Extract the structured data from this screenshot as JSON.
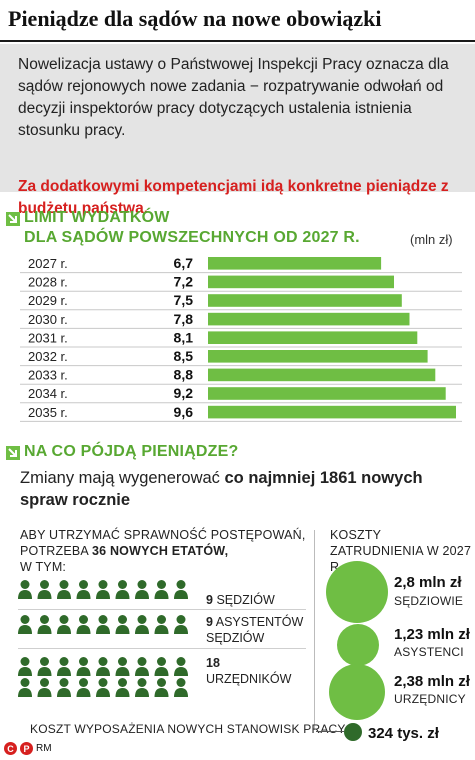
{
  "title": "Pieniądze dla sądów na nowe obowiązki",
  "intro": {
    "text": "Nowelizacja ustawy o Państwowej Inspekcji Pracy oznacza dla sądów rejonowych nowe zadania − rozpatrywanie odwołań od decyzji inspektorów pracy dotyczących ustalenia istnienia stosunku pracy.",
    "highlight": "Za dodatkowymi kompetencjami idą konkretne pieniądze z budżetu państwa."
  },
  "section1": {
    "line1": "LIMIT WYDATKÓW",
    "line2": "DLA SĄDÓW POWSZECHNYCH OD 2027 R.",
    "unit": "(mln zł)"
  },
  "chart_data": {
    "type": "bar",
    "orientation": "horizontal",
    "categories": [
      "2027 r.",
      "2028 r.",
      "2029 r.",
      "2030 r.",
      "2031 r.",
      "2032 r.",
      "2033 r.",
      "2034 r.",
      "2035 r."
    ],
    "values": [
      6.7,
      7.2,
      7.5,
      7.8,
      8.1,
      8.5,
      8.8,
      9.2,
      9.6
    ],
    "value_labels": [
      "6,7",
      "7,2",
      "7,5",
      "7,8",
      "8,1",
      "8,5",
      "8,8",
      "9,2",
      "9,6"
    ],
    "title": "LIMIT WYDATKÓW DLA SĄDÓW POWSZECHNYCH OD 2027 R.",
    "unit": "(mln zł)",
    "bar_color": "#6fbe44",
    "grid": false
  },
  "section2": {
    "head": "NA CO PÓJDĄ PIENIĄDZE?"
  },
  "subtitle": {
    "text": "Zmiany mają wygenerować ",
    "bold": "co najmniej 1861 nowych spraw rocznie"
  },
  "staff": {
    "header_line1": "ABY UTRZYMAĆ SPRAWNOŚĆ POSTĘPOWAŃ,",
    "header_line2_pre": "POTRZEBA ",
    "header_line2_bold": "36 NOWYCH ETATÓW,",
    "header_line3": "W TYM:",
    "groups": [
      {
        "count": "9",
        "label": "SĘDZIÓW",
        "icons": 9
      },
      {
        "count": "9",
        "label_line1": "ASYSTENTÓW",
        "label_line2": "SĘDZIÓW",
        "icons": 9
      },
      {
        "count": "18",
        "label": "URZĘDNIKÓW",
        "icons": 18
      }
    ]
  },
  "costs": {
    "header_line1": "KOSZTY",
    "header_line2": "ZATRUDNIENIA W 2027 R.",
    "items": [
      {
        "value": "2,8 mln zł",
        "label": "SĘDZIOWIE",
        "amount": 2.8
      },
      {
        "value": "1,23 mln zł",
        "label": "ASYSTENCI",
        "amount": 1.23
      },
      {
        "value": "2,38 mln zł",
        "label": "URZĘDNICY",
        "amount": 2.38
      }
    ]
  },
  "equipment": {
    "label": "KOSZT WYPOSAŻENIA NOWYCH STANOWISK PRACY",
    "value": "324 tys. zł"
  },
  "footer": {
    "c": "C",
    "p": "P",
    "author": "RM"
  },
  "colors": {
    "accent": "#6fbe44",
    "accent_dark": "#2f6a2a",
    "highlight": "#d6201f"
  }
}
